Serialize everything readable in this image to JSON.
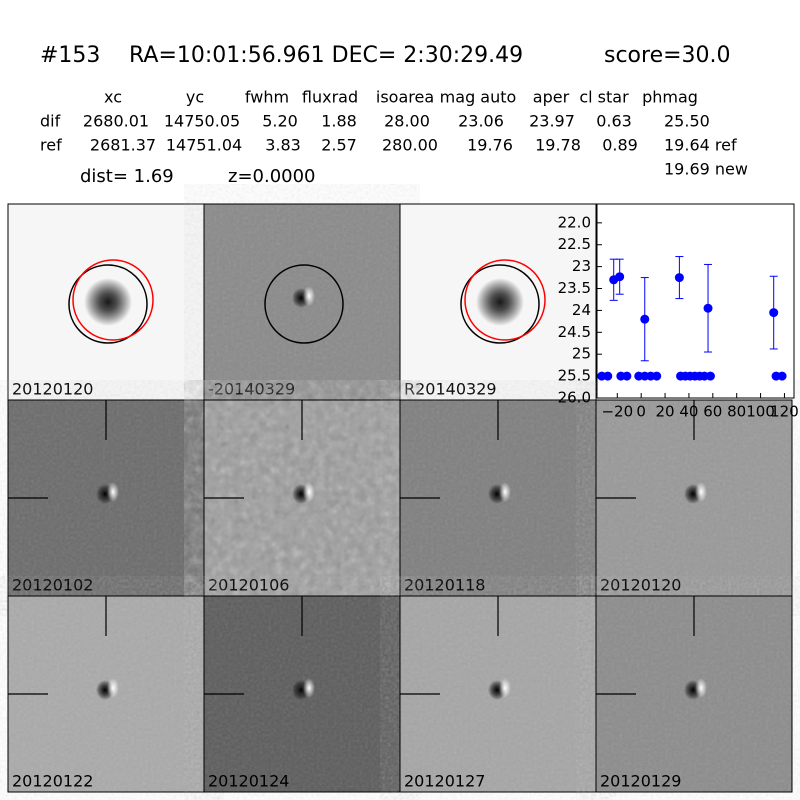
{
  "header": {
    "id": "#153",
    "coords": "RA=10:01:56.961 DEC= 2:30:29.49",
    "score": "score=30.0"
  },
  "table": {
    "columns": [
      "xc",
      "yc",
      "fwhm",
      "fluxrad",
      "isoarea",
      "mag auto",
      "aper",
      "cl star",
      "phmag"
    ],
    "rows": [
      {
        "label": "dif",
        "cells": [
          "2680.01",
          "14750.05",
          "5.20",
          "1.88",
          "28.00",
          "23.06",
          "23.97",
          "0.63",
          "25.50"
        ]
      },
      {
        "label": "ref",
        "cells": [
          "2681.37",
          "14751.04",
          "3.83",
          "2.57",
          "280.00",
          "19.76",
          "19.78",
          "0.89",
          "19.64 ref"
        ]
      }
    ],
    "extra": "19.69 new",
    "dist": "dist=  1.69",
    "z": "z=0.0000"
  },
  "panels": [
    {
      "label": "20120120"
    },
    {
      "label": "-20140329"
    },
    {
      "label": "R20140329"
    },
    {
      "label": "20120102"
    },
    {
      "label": "20120106"
    },
    {
      "label": "20120118"
    },
    {
      "label": "20120120",
      "label_color": "#ff0000"
    },
    {
      "label": "20120122"
    },
    {
      "label": "20120124"
    },
    {
      "label": "20120127"
    },
    {
      "label": "20120129"
    }
  ],
  "chart_data": {
    "type": "scatter",
    "xlim": [
      -37,
      128
    ],
    "ylim": [
      26.0,
      21.57
    ],
    "xticks": [
      {
        "value": -20,
        "label": "−20"
      },
      0,
      20,
      40,
      60,
      80,
      100,
      120
    ],
    "yticks": [
      {
        "value": 22.0,
        "label": "22.0"
      },
      22.5,
      23.0,
      23.5,
      24.0,
      24.5,
      25.0,
      25.5,
      {
        "value": 26.0,
        "label": "26.0"
      }
    ],
    "series": [
      {
        "color": "#0000ff",
        "x": [
          -23,
          -18,
          3,
          32,
          56,
          111
        ],
        "values": [
          23.3,
          23.23,
          24.2,
          23.25,
          23.95,
          24.05
        ],
        "errors": [
          0.47,
          0.4,
          0.95,
          0.48,
          1.0,
          0.83
        ]
      },
      {
        "color": "#0000ff",
        "x": [
          -33,
          -28,
          -17,
          -12,
          -2,
          3,
          8,
          13,
          33,
          37,
          41,
          45,
          49,
          53,
          58,
          113,
          118
        ],
        "values": [
          25.5,
          25.5,
          25.5,
          25.5,
          25.5,
          25.5,
          25.5,
          25.5,
          25.5,
          25.5,
          25.5,
          25.5,
          25.5,
          25.5,
          25.5,
          25.5,
          25.5
        ]
      }
    ]
  }
}
